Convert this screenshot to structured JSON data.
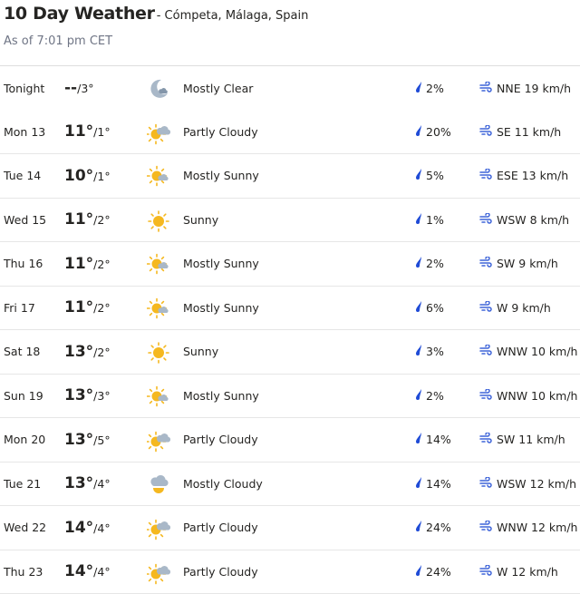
{
  "header": {
    "title": "10 Day Weather",
    "location": "- Cómpeta, Málaga, Spain",
    "as_of": "As of 7:01 pm CET"
  },
  "colors": {
    "sun": "#f5b81f",
    "cloud": "#a9b8c8",
    "rain": "#1f4bd6",
    "wind": "#3f65d9"
  },
  "days": [
    {
      "day": "Tonight",
      "hi": "--",
      "lo": "/3°",
      "icon": "moon-cloud",
      "cond": "Mostly Clear",
      "rain": "2%",
      "wind": "NNE 19 km/h"
    },
    {
      "day": "Mon 13",
      "hi": "11°",
      "lo": "/1°",
      "icon": "partly-cloudy",
      "cond": "Partly Cloudy",
      "rain": "20%",
      "wind": "SE 11 km/h"
    },
    {
      "day": "Tue 14",
      "hi": "10°",
      "lo": "/1°",
      "icon": "mostly-sunny",
      "cond": "Mostly Sunny",
      "rain": "5%",
      "wind": "ESE 13 km/h"
    },
    {
      "day": "Wed 15",
      "hi": "11°",
      "lo": "/2°",
      "icon": "sunny",
      "cond": "Sunny",
      "rain": "1%",
      "wind": "WSW 8 km/h"
    },
    {
      "day": "Thu 16",
      "hi": "11°",
      "lo": "/2°",
      "icon": "mostly-sunny",
      "cond": "Mostly Sunny",
      "rain": "2%",
      "wind": "SW 9 km/h"
    },
    {
      "day": "Fri 17",
      "hi": "11°",
      "lo": "/2°",
      "icon": "mostly-sunny",
      "cond": "Mostly Sunny",
      "rain": "6%",
      "wind": "W 9 km/h"
    },
    {
      "day": "Sat 18",
      "hi": "13°",
      "lo": "/2°",
      "icon": "sunny",
      "cond": "Sunny",
      "rain": "3%",
      "wind": "WNW 10 km/h"
    },
    {
      "day": "Sun 19",
      "hi": "13°",
      "lo": "/3°",
      "icon": "mostly-sunny",
      "cond": "Mostly Sunny",
      "rain": "2%",
      "wind": "WNW 10 km/h"
    },
    {
      "day": "Mon 20",
      "hi": "13°",
      "lo": "/5°",
      "icon": "partly-cloudy",
      "cond": "Partly Cloudy",
      "rain": "14%",
      "wind": "SW 11 km/h"
    },
    {
      "day": "Tue 21",
      "hi": "13°",
      "lo": "/4°",
      "icon": "mostly-cloudy",
      "cond": "Mostly Cloudy",
      "rain": "14%",
      "wind": "WSW 12 km/h"
    },
    {
      "day": "Wed 22",
      "hi": "14°",
      "lo": "/4°",
      "icon": "partly-cloudy",
      "cond": "Partly Cloudy",
      "rain": "24%",
      "wind": "WNW 12 km/h"
    },
    {
      "day": "Thu 23",
      "hi": "14°",
      "lo": "/4°",
      "icon": "partly-cloudy",
      "cond": "Partly Cloudy",
      "rain": "24%",
      "wind": "W 12 km/h"
    }
  ]
}
